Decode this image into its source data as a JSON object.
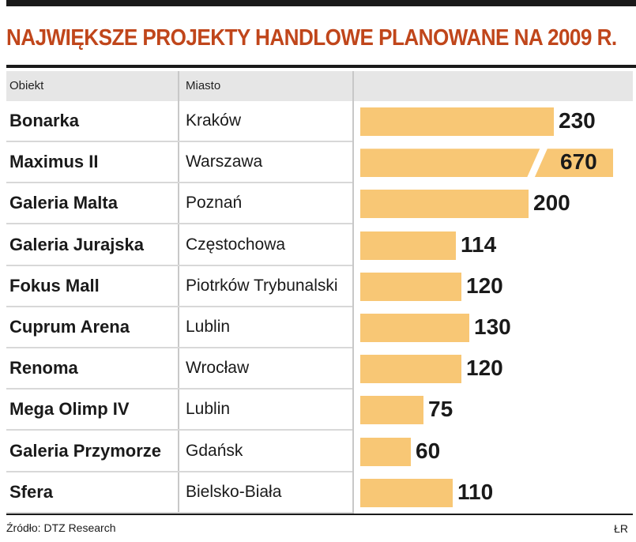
{
  "title": "NAJWIĘKSZE PROJEKTY HANDLOWE PLANOWANE NA 2009 R.",
  "columns": {
    "obiekt": "Obiekt",
    "miasto": "Miasto"
  },
  "footer": {
    "source": "Źródło: DTZ Research",
    "credit": "ŁR"
  },
  "colors": {
    "title": "#c0461b",
    "bar": "#f8c775",
    "header_bg": "#e6e6e6"
  },
  "chart_data": {
    "type": "bar",
    "orientation": "horizontal",
    "title": "NAJWIĘKSZE PROJEKTY HANDLOWE PLANOWANE NA 2009 R.",
    "categories": [
      "Bonarka",
      "Maximus II",
      "Galeria Malta",
      "Galeria Jurajska",
      "Fokus Mall",
      "Cuprum Arena",
      "Renoma",
      "Mega Olimp IV",
      "Galeria Przymorze",
      "Sfera"
    ],
    "cities": [
      "Kraków",
      "Warszawa",
      "Poznań",
      "Częstochowa",
      "Piotrków Trybunalski",
      "Lublin",
      "Wrocław",
      "Lublin",
      "Gdańsk",
      "Bielsko-Biała"
    ],
    "values": [
      230,
      670,
      200,
      114,
      120,
      130,
      120,
      75,
      60,
      110
    ],
    "value_labels": [
      "230",
      "670",
      "200",
      "114",
      "120",
      "130",
      "120",
      "75",
      "60",
      "110"
    ],
    "broken_bar_index": 1,
    "grid": false
  }
}
